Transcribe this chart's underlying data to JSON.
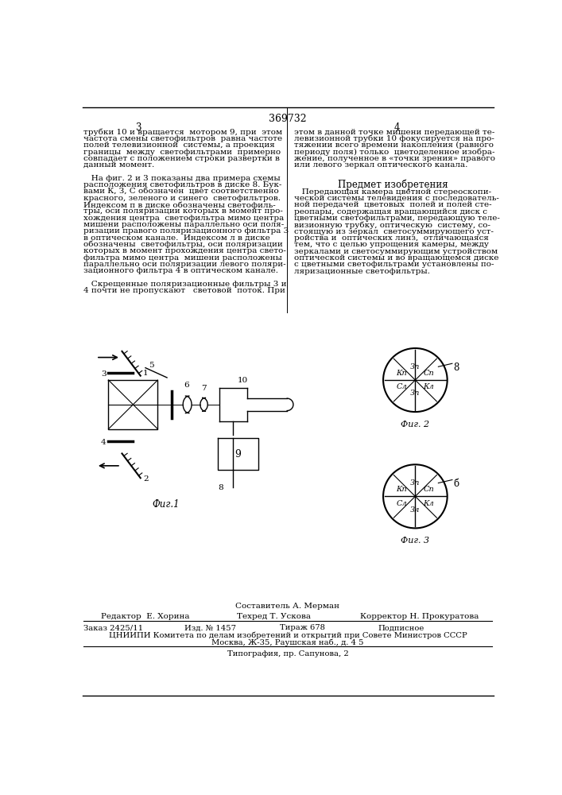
{
  "patent_number": "369732",
  "page_numbers": [
    "3",
    "4"
  ],
  "col1_lines": [
    "трубки 10 и вращается  мотором 9, при  этом",
    "частота смены светофильтров  равна частоте",
    "полей телевизионной  системы, а проекция",
    "границы  между  светофильтрами  примерно",
    "совпадает с положением строки развертки в",
    "данный момент.",
    "",
    "   На фиг. 2 и 3 показаны два примера схемы",
    "расположения светофильтров в диске 8. Бук-",
    "вами К, З, С обозначен  цвет соответственно",
    "красного, зеленого и синего  светофильтров.",
    "Индексом п в диске обозначены светофиль-",
    "тры, оси поляризации которых в момент про-",
    "хождения центра  светофильтра мимо центра",
    "мишени расположены параллельно оси поля-",
    "ризации правого поляризационного фильтра 3",
    "в оптическом канале.  Индексом л в диске",
    "обозначены  светофильтры, оси поляризации",
    "которых в момент прохождения центра свето-",
    "фильтра мимо центра  мишени расположены",
    "параллельно оси поляризации левого поляри-",
    "зационного фильтра 4 в оптическом канале.",
    "",
    "   Скрещенные поляризационные фильтры 3 и",
    "4 почти не пропускают   световой  поток. При"
  ],
  "col2_lines": [
    "этом в данной точке мишени передающей те-",
    "левизионной трубки 10 фокусируется на про-",
    "тяжении всего времени накопления (равного",
    "периоду поля) только  цветоделенное изобра-",
    "жение, полученное в «точки зрения» правого",
    "или левого зеркал оптического канала.",
    ""
  ],
  "predmet_title": "Предмет изобретения",
  "predmet_text": [
    "   Передающая камера цветной стереоскопи-",
    "ческой системы телевидения с последователь-",
    "ной передачей  цветовых  полей и полей сте-",
    "реопары, содержащая вращающийся диск с",
    "цветными светофильтрами, передающую теле-",
    "визионную трубку, оптическую  систему, со-",
    "стоящую из зеркал  светосуммирующего уст-",
    "ройства и  оптических линз,  отличающаяся",
    "тем, что с целью упрощения камеры, между",
    "зеркалами и светосуммирующим устройством",
    "оптической системы и во вращающемся диске",
    "с цветными светофильтрами установлены по-",
    "ляризационные светофильтры."
  ],
  "fig1_label": "Фиг.1",
  "fig2_label": "Фиг. 2",
  "fig3_label": "Фиг. 3",
  "footer_compositor": "Составитель А. Мерман",
  "footer_editor": "Редактор  Е. Хорина",
  "footer_tech": "Техред Т. Ускова",
  "footer_corrector": "Корректор Н. Прокуратова",
  "footer_order": "Заказ 2425/11",
  "footer_izd": "Изд. № 1457",
  "footer_tirazh": "Тираж 678",
  "footer_podpisnoe": "Подписное",
  "footer_tsniip": "ЦНИИПИ Комитета по делам изобретений и открытий при Совете Министров СССР",
  "footer_moscow": "Москва, Ж-35, Раушская наб., д. 4 5",
  "footer_tipograf": "Типография, пр. Сапунова, 2",
  "bg_color": "#ffffff",
  "text_color": "#000000"
}
